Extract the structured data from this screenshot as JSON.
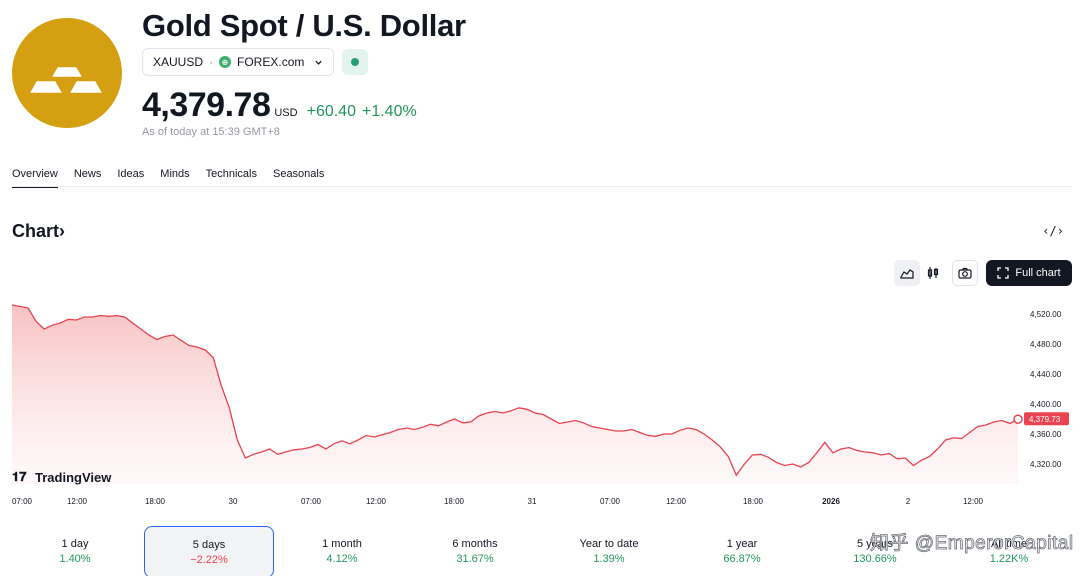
{
  "header": {
    "title": "Gold Spot / U.S. Dollar",
    "symbol": "XAUUSD",
    "separator": "·",
    "broker": "FOREX.com",
    "broker_badge": "⊕",
    "status_color": "#2b9c7a"
  },
  "quote": {
    "price": "4,379.78",
    "currency": "USD",
    "change": "+60.40",
    "change_pct": "+1.40%",
    "as_of": "As of today at 15:39 GMT+8"
  },
  "tabs": [
    "Overview",
    "News",
    "Ideas",
    "Minds",
    "Technicals",
    "Seasonals"
  ],
  "chart_section": {
    "heading": "Chart",
    "heading_chevron": "›",
    "embed_icon": "‹/›",
    "full_chart_label": "Full chart",
    "branding": "TradingView",
    "last_price_tag": "4,379.73"
  },
  "chart_data": {
    "type": "area",
    "y_ticks": [
      4520,
      4480,
      4440,
      4400,
      4360,
      4320
    ],
    "y_tick_labels": [
      "4,520.00",
      "4,480.00",
      "4,440.00",
      "4,400.00",
      "4,360.00",
      "4,320.00"
    ],
    "ylim": [
      4296,
      4540
    ],
    "x_tick_labels": [
      "07:00",
      "12:00",
      "18:00",
      "30",
      "07:00",
      "12:00",
      "18:00",
      "31",
      "07:00",
      "12:00",
      "18:00",
      "2026",
      "2",
      "12:00"
    ],
    "x": [
      0,
      1,
      2,
      3,
      4,
      5,
      6,
      7,
      8,
      9,
      10,
      11,
      12,
      13,
      14,
      15,
      16,
      17,
      18,
      19,
      20,
      21,
      22,
      23,
      24,
      25,
      26,
      27,
      28,
      29,
      30,
      31,
      32,
      33,
      34,
      35,
      36,
      37,
      38,
      39,
      40,
      41,
      42,
      43,
      44,
      45,
      46,
      47,
      48,
      49,
      50,
      51,
      52,
      53,
      54,
      55,
      56,
      57,
      58,
      59,
      60,
      61,
      62,
      63,
      64,
      65,
      66,
      67,
      68,
      69,
      70,
      71,
      72,
      73,
      74,
      75,
      76,
      77,
      78,
      79,
      80,
      81,
      82,
      83,
      84,
      85,
      86,
      87,
      88,
      89,
      90,
      91,
      92,
      93,
      94,
      95,
      96,
      97,
      98,
      99,
      100,
      101,
      102,
      103,
      104,
      105,
      106,
      107,
      108,
      109,
      110,
      111,
      112,
      113,
      114,
      115,
      116,
      117,
      118,
      119,
      120,
      121,
      122,
      123,
      124,
      125
    ],
    "series": [
      {
        "values": [
          4532,
          4530,
          4528,
          4510,
          4500,
          4505,
          4508,
          4513,
          4512,
          4516,
          4516,
          4518,
          4517,
          4518,
          4516,
          4508,
          4500,
          4492,
          4486,
          4490,
          4492,
          4485,
          4478,
          4476,
          4472,
          4462,
          4425,
          4395,
          4352,
          4328,
          4333,
          4336,
          4340,
          4333,
          4336,
          4339,
          4340,
          4342,
          4346,
          4340,
          4347,
          4351,
          4347,
          4352,
          4358,
          4356,
          4359,
          4362,
          4366,
          4368,
          4366,
          4369,
          4373,
          4371,
          4376,
          4380,
          4375,
          4376,
          4384,
          4388,
          4390,
          4388,
          4391,
          4395,
          4393,
          4388,
          4386,
          4380,
          4374,
          4376,
          4378,
          4375,
          4370,
          4368,
          4366,
          4364,
          4364,
          4366,
          4362,
          4358,
          4357,
          4360,
          4360,
          4365,
          4368,
          4366,
          4360,
          4352,
          4343,
          4330,
          4305,
          4320,
          4332,
          4333,
          4329,
          4322,
          4318,
          4320,
          4316,
          4322,
          4335,
          4349,
          4335,
          4340,
          4342,
          4338,
          4336,
          4335,
          4332,
          4334,
          4327,
          4328,
          4318,
          4325,
          4330,
          4340,
          4352,
          4355,
          4354,
          4362,
          4370,
          4372,
          4376,
          4378,
          4374,
          4379.73
        ],
        "color": "#e8434f"
      }
    ],
    "grid": false,
    "legend": "none"
  },
  "ranges": [
    {
      "label": "1 day",
      "pct": "1.40%",
      "negative": false
    },
    {
      "label": "5 days",
      "pct": "−2.22%",
      "negative": true
    },
    {
      "label": "1 month",
      "pct": "4.12%",
      "negative": false
    },
    {
      "label": "6 months",
      "pct": "31.67%",
      "negative": false
    },
    {
      "label": "Year to date",
      "pct": "1.39%",
      "negative": false
    },
    {
      "label": "1 year",
      "pct": "66.87%",
      "negative": false
    },
    {
      "label": "5 years",
      "pct": "130.66%",
      "negative": false
    },
    {
      "label": "All time",
      "pct": "1.22K%",
      "negative": false
    }
  ],
  "watermark": "知乎 @EmperorCapital",
  "colors": {
    "gold": "#D4A012",
    "positive": "#22965f",
    "negative": "#e8434f",
    "active_range_border": "#2962ff"
  },
  "icons": {
    "logo": "gold-bars-icon",
    "area_chart": "area-chart-icon",
    "candles": "candlestick-icon",
    "camera": "camera-icon",
    "fullscreen": "fullscreen-icon",
    "embed": "embed-code-icon"
  }
}
